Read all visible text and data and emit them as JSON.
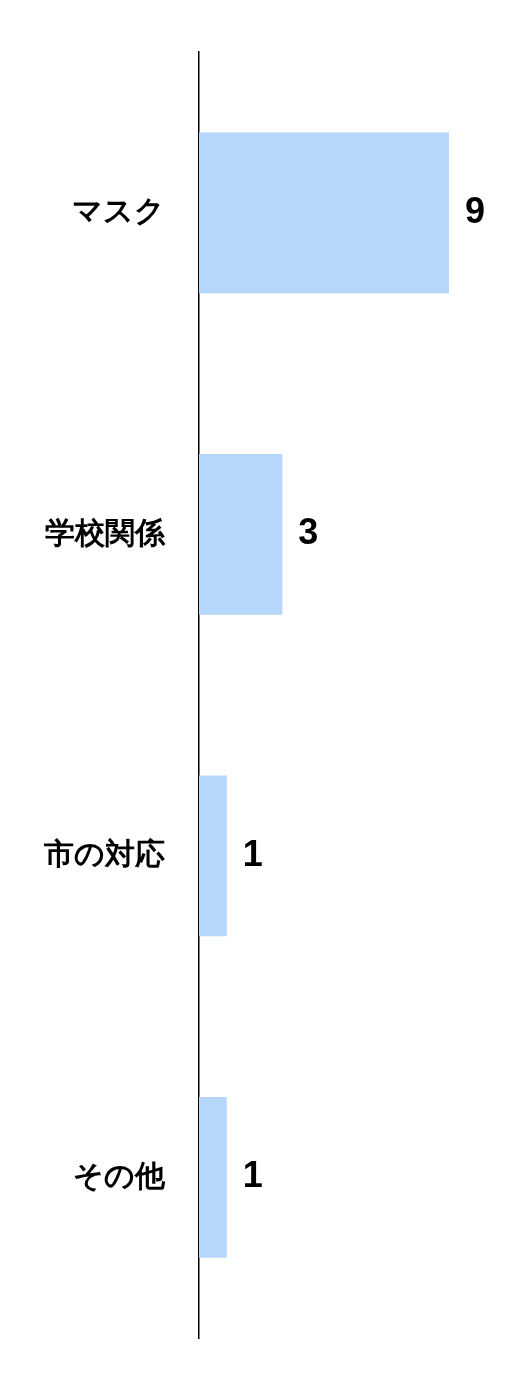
{
  "chart_data": {
    "type": "bar",
    "orientation": "horizontal",
    "categories": [
      "マスク",
      "学校関係",
      "市の対応",
      "その他"
    ],
    "values": [
      9,
      3,
      1,
      1
    ],
    "color": "#b5d7fb",
    "data_labels": true
  }
}
